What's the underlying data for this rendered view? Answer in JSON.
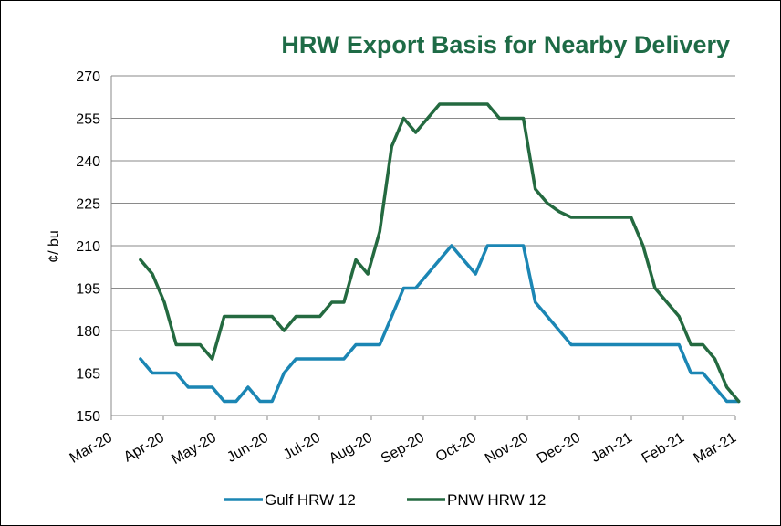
{
  "chart_data": {
    "type": "line",
    "title": "HRW Export Basis for Nearby Delivery",
    "ylabel": "¢/ bu",
    "xlabel": "",
    "ylim": [
      150,
      270
    ],
    "yticks": [
      150,
      165,
      180,
      195,
      210,
      225,
      240,
      255,
      270
    ],
    "grid": true,
    "legend_position": "bottom",
    "x_tick_labels": [
      "Mar-20",
      "Apr-20",
      "May-20",
      "Jun-20",
      "Jul-20",
      "Aug-20",
      "Sep-20",
      "Oct-20",
      "Nov-20",
      "Dec-20",
      "Jan-21",
      "Feb-21",
      "Mar-21"
    ],
    "x": [
      "2020-03-18",
      "2020-03-25",
      "2020-04-01",
      "2020-04-08",
      "2020-04-15",
      "2020-04-22",
      "2020-04-29",
      "2020-05-06",
      "2020-05-13",
      "2020-05-20",
      "2020-05-27",
      "2020-06-03",
      "2020-06-10",
      "2020-06-17",
      "2020-06-24",
      "2020-07-01",
      "2020-07-08",
      "2020-07-15",
      "2020-07-22",
      "2020-07-29",
      "2020-08-05",
      "2020-08-12",
      "2020-08-19",
      "2020-08-26",
      "2020-09-02",
      "2020-09-09",
      "2020-09-16",
      "2020-09-23",
      "2020-09-30",
      "2020-10-07",
      "2020-10-14",
      "2020-10-21",
      "2020-10-28",
      "2020-11-04",
      "2020-11-11",
      "2020-11-18",
      "2020-11-25",
      "2020-12-02",
      "2020-12-09",
      "2020-12-16",
      "2020-12-23",
      "2020-12-30",
      "2021-01-06",
      "2021-01-13",
      "2021-01-20",
      "2021-01-27",
      "2021-02-03",
      "2021-02-10",
      "2021-02-17",
      "2021-02-24",
      "2021-03-03"
    ],
    "series": [
      {
        "name": "Gulf HRW 12",
        "color": "#1b86b4",
        "values": [
          170,
          165,
          165,
          165,
          160,
          160,
          160,
          155,
          155,
          160,
          155,
          155,
          165,
          170,
          170,
          170,
          170,
          170,
          175,
          175,
          175,
          185,
          195,
          195,
          200,
          205,
          210,
          205,
          200,
          210,
          210,
          210,
          210,
          190,
          185,
          180,
          175,
          175,
          175,
          175,
          175,
          175,
          175,
          175,
          175,
          175,
          165,
          165,
          160,
          155,
          155
        ]
      },
      {
        "name": "PNW HRW 12",
        "color": "#246a40",
        "values": [
          205,
          200,
          190,
          175,
          175,
          175,
          170,
          185,
          185,
          185,
          185,
          185,
          180,
          185,
          185,
          185,
          190,
          190,
          205,
          200,
          215,
          245,
          255,
          250,
          255,
          260,
          260,
          260,
          260,
          260,
          255,
          255,
          255,
          230,
          225,
          222,
          220,
          220,
          220,
          220,
          220,
          220,
          210,
          195,
          190,
          185,
          175,
          175,
          170,
          160,
          155
        ]
      }
    ]
  }
}
